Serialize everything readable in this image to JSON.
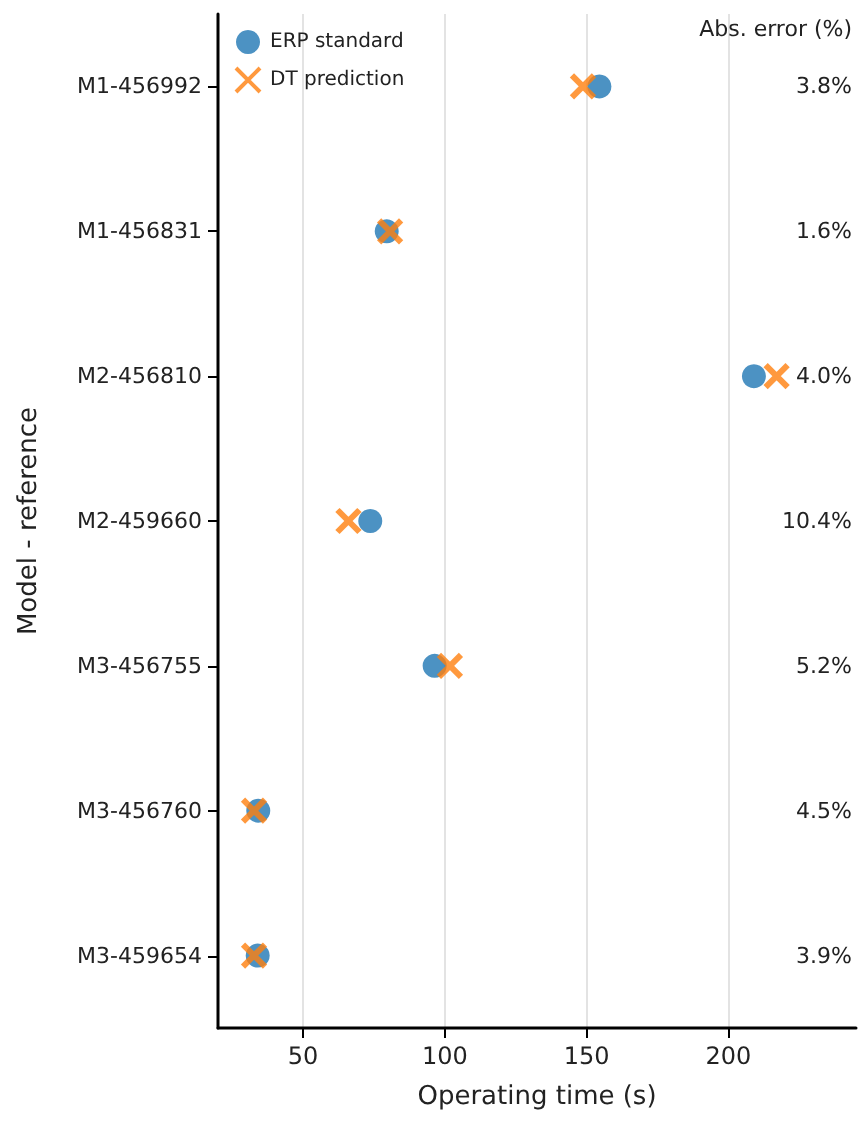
{
  "chart_data": {
    "type": "scatter",
    "orientation": "horizontal",
    "xlabel": "Operating time (s)",
    "ylabel": "Model - reference",
    "categories": [
      "M1-456992",
      "M1-456831",
      "M2-456810",
      "M2-459660",
      "M3-456755",
      "M3-456760",
      "M3-459654"
    ],
    "series": [
      {
        "name": "ERP standard",
        "color": "#1f77b4",
        "marker": "circle",
        "values": [
          154.5,
          79.5,
          209,
          73.7,
          96.4,
          34.2,
          34
        ]
      },
      {
        "name": "DT prediction",
        "color": "#ff7f0e",
        "marker": "cross",
        "values": [
          148.7,
          80.7,
          217,
          66,
          101.8,
          32.7,
          32.7
        ]
      }
    ],
    "xlim": [
      20,
      245
    ],
    "xticks": [
      50,
      100,
      150,
      200
    ],
    "grid": "x",
    "legend": "top left",
    "annotations": [
      "Abs. error (%)",
      "3.8%",
      "1.6%",
      "4.0%",
      "10.4%",
      "5.2%",
      "4.5%",
      "3.9%"
    ]
  }
}
